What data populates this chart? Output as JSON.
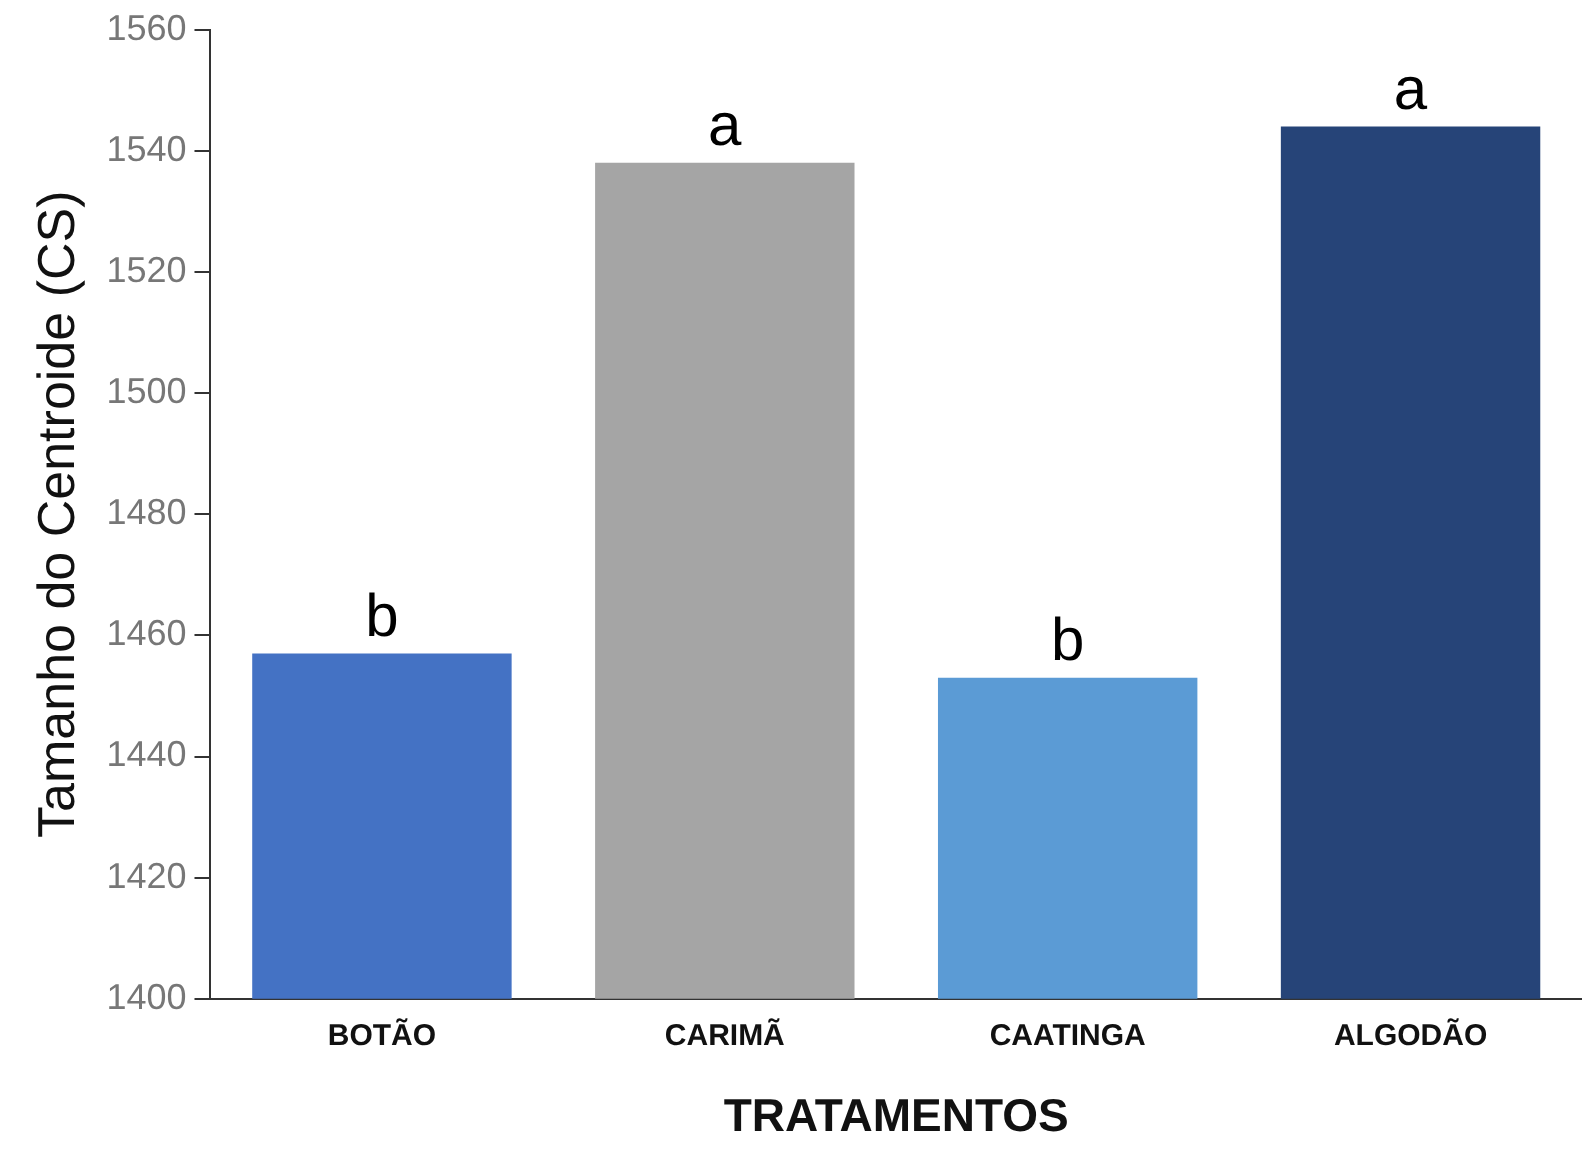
{
  "chart_data": {
    "type": "bar",
    "xlabel": "TRATAMENTOS",
    "ylabel": "Tamanho do Centroide (CS)",
    "categories": [
      "BOTÃO",
      "CARIMÃ",
      "CAATINGA",
      "ALGODÃO"
    ],
    "values": [
      1457,
      1538,
      1453,
      1544
    ],
    "colors": [
      "#4472c4",
      "#a5a5a5",
      "#5b9bd5",
      "#264478"
    ],
    "ylim": [
      1400,
      1560
    ],
    "yticks": [
      1400,
      1420,
      1440,
      1460,
      1480,
      1500,
      1520,
      1540,
      1560
    ],
    "grid": false,
    "legend": false,
    "annotations": [
      {
        "text": "b",
        "x": "BOTÃO",
        "y": 1457
      },
      {
        "text": "a",
        "x": "CARIMÃ",
        "y": 1538
      },
      {
        "text": "b",
        "x": "CAATINGA",
        "y": 1453
      },
      {
        "text": "a",
        "x": "ALGODÃO",
        "y": 1544
      }
    ]
  }
}
